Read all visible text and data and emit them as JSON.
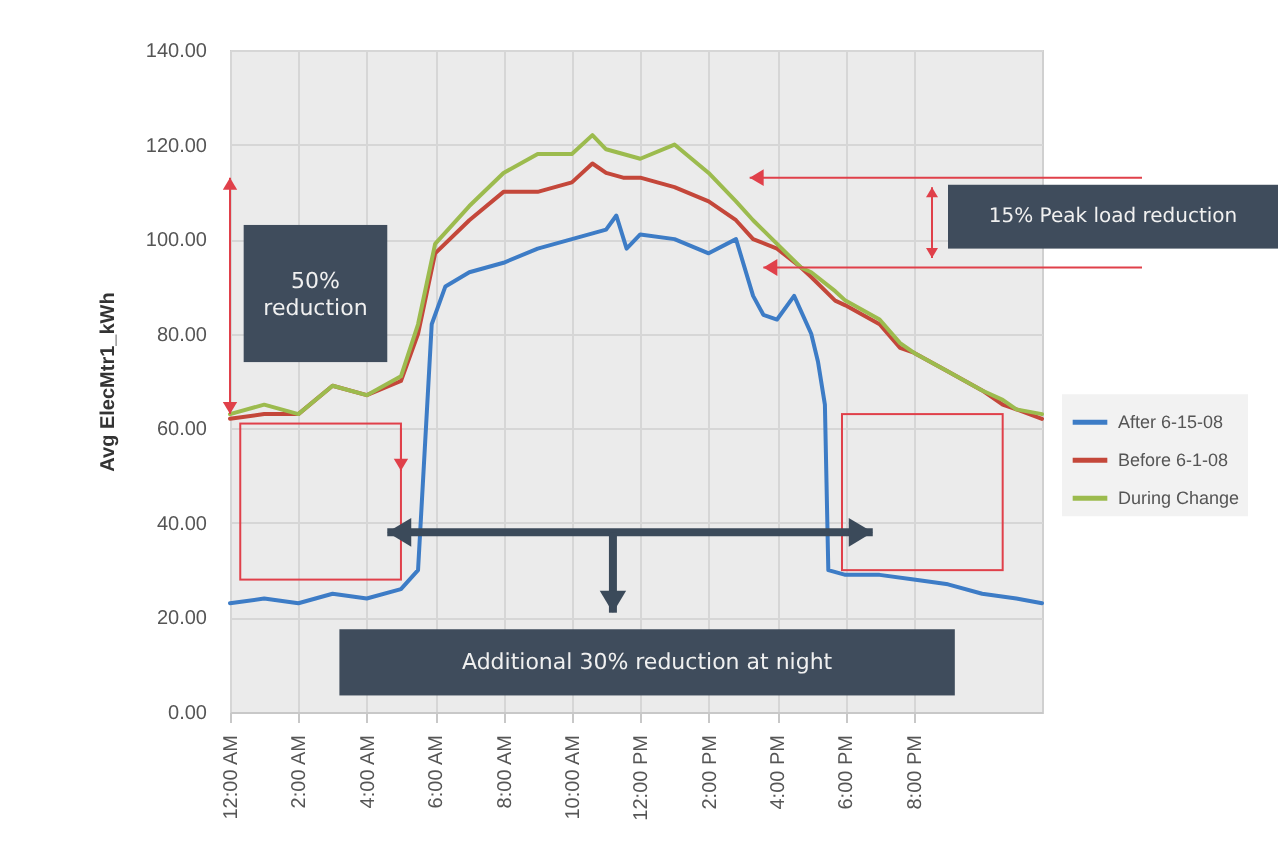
{
  "chart_data": {
    "type": "line",
    "ylabel": "Avg ElecMtr1_kWh",
    "x": [
      0,
      1,
      2,
      3,
      4,
      5,
      5.5,
      6,
      7,
      8,
      9,
      10,
      10.6,
      11,
      11.5,
      12,
      13,
      14,
      14.8,
      15.3,
      16,
      16.7,
      17,
      17.7,
      18,
      19,
      19.6,
      20,
      21,
      22,
      22.6,
      23,
      23.75
    ],
    "series": [
      {
        "name": "After 6-15-08",
        "color": "#3d7cc6",
        "x": [
          0,
          1,
          2,
          3,
          4,
          5,
          5.5,
          5.9,
          6.3,
          7,
          8,
          9,
          10,
          11,
          11.3,
          11.6,
          12,
          13,
          14,
          14.8,
          15.3,
          15.6,
          16,
          16.5,
          17,
          17.2,
          17.4,
          17.5,
          18,
          19,
          20,
          21,
          22,
          23,
          23.75
        ],
        "values": [
          23,
          24,
          23,
          25,
          24,
          26,
          30,
          82,
          90,
          93,
          95,
          98,
          100,
          102,
          105,
          98,
          101,
          100,
          97,
          100,
          88,
          84,
          83,
          88,
          80,
          74,
          65,
          30,
          29,
          29,
          28,
          27,
          25,
          24,
          23
        ]
      },
      {
        "name": "Before 6-1-08",
        "color": "#c4473a",
        "values": [
          62,
          63,
          63,
          69,
          67,
          70,
          80,
          97,
          104,
          110,
          110,
          112,
          116,
          114,
          113,
          113,
          111,
          108,
          104,
          100,
          98,
          94,
          92,
          87,
          86,
          82,
          77,
          76,
          72,
          68,
          65,
          64,
          62
        ]
      },
      {
        "name": "During Change",
        "color": "#9cbb4e",
        "values": [
          63,
          65,
          63,
          69,
          67,
          71,
          82,
          99,
          107,
          114,
          118,
          118,
          122,
          119,
          118,
          117,
          120,
          114,
          108,
          104,
          99,
          94,
          93,
          89,
          87,
          83,
          78,
          76,
          72,
          68,
          66,
          64,
          63
        ]
      }
    ],
    "xlim": [
      0,
      23.75
    ],
    "xticks": [
      {
        "value": 0,
        "label": "12:00 AM"
      },
      {
        "value": 2,
        "label": "2:00 AM"
      },
      {
        "value": 4,
        "label": "4:00 AM"
      },
      {
        "value": 6,
        "label": "6:00 AM"
      },
      {
        "value": 8,
        "label": "8:00 AM"
      },
      {
        "value": 10,
        "label": "10:00 AM"
      },
      {
        "value": 12,
        "label": "12:00 PM"
      },
      {
        "value": 14,
        "label": "2:00 PM"
      },
      {
        "value": 16,
        "label": "4:00 PM"
      },
      {
        "value": 18,
        "label": "6:00 PM"
      },
      {
        "value": 20,
        "label": "8:00 PM"
      }
    ],
    "ylim": [
      0,
      140
    ],
    "yticks": [
      {
        "value": 0,
        "label": "0.00"
      },
      {
        "value": 20,
        "label": "20.00"
      },
      {
        "value": 40,
        "label": "40.00"
      },
      {
        "value": 60,
        "label": "60.00"
      },
      {
        "value": 80,
        "label": "80.00"
      },
      {
        "value": 100,
        "label": "100.00"
      },
      {
        "value": 120,
        "label": "120.00"
      },
      {
        "value": 140,
        "label": "140.00"
      }
    ],
    "grid": true,
    "legend": "right",
    "annotations": [
      "50% reduction",
      "15% Peak load reduction",
      "Additional 30% reduction at night"
    ]
  }
}
